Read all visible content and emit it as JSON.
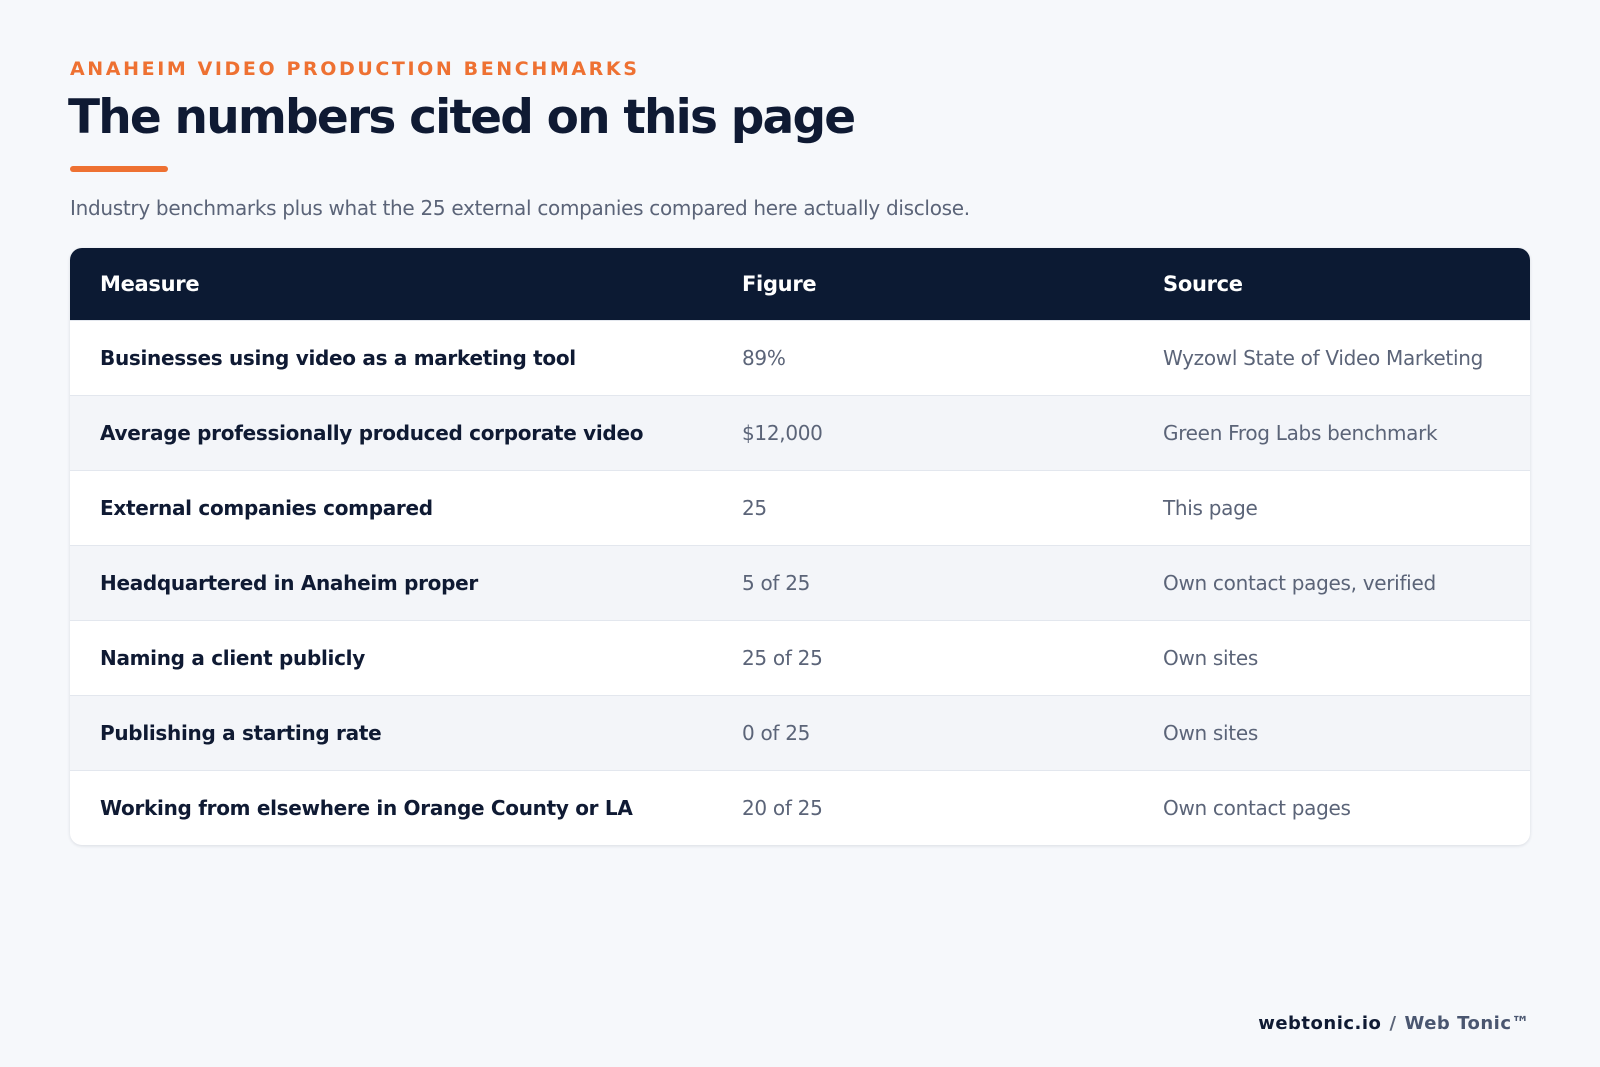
{
  "header": {
    "eyebrow": "ANAHEIM VIDEO PRODUCTION BENCHMARKS",
    "title": "The numbers cited on this page",
    "subtitle": "Industry benchmarks plus what the 25 external companies compared here actually disclose."
  },
  "table": {
    "columns": [
      "Measure",
      "Figure",
      "Source"
    ],
    "rows": [
      [
        "Businesses using video as a marketing tool",
        "89%",
        "Wyzowl State of Video Marketing"
      ],
      [
        "Average professionally produced corporate video",
        "$12,000",
        "Green Frog Labs benchmark"
      ],
      [
        "External companies compared",
        "25",
        "This page"
      ],
      [
        "Headquartered in Anaheim proper",
        "5 of 25",
        "Own contact pages, verified"
      ],
      [
        "Naming a client publicly",
        "25 of 25",
        "Own sites"
      ],
      [
        "Publishing a starting rate",
        "0 of 25",
        "Own sites"
      ],
      [
        "Working from elsewhere in Orange County or LA",
        "20 of 25",
        "Own contact pages"
      ]
    ]
  },
  "footer": {
    "site": "webtonic.io",
    "separator": "/",
    "brand": "Web Tonic™"
  }
}
